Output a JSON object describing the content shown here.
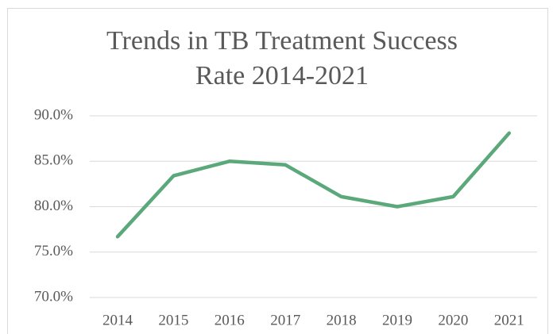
{
  "chart_data": {
    "type": "line",
    "title": "Trends in TB Treatment Success Rate 2014-2021",
    "categories": [
      "2014",
      "2015",
      "2016",
      "2017",
      "2018",
      "2019",
      "2020",
      "2021"
    ],
    "series": [
      {
        "color": "#5ba87a",
        "values": [
          76.7,
          83.4,
          85.0,
          84.6,
          81.1,
          80.0,
          81.1,
          88.1
        ]
      }
    ],
    "ylim": [
      70,
      90
    ],
    "yticks": [
      {
        "value": 70,
        "label": "70.0%"
      },
      {
        "value": 75,
        "label": "75.0%"
      },
      {
        "value": 80,
        "label": "80.0%"
      },
      {
        "value": 85,
        "label": "85.0%"
      },
      {
        "value": 90,
        "label": "90.0%"
      }
    ],
    "grid": true
  }
}
